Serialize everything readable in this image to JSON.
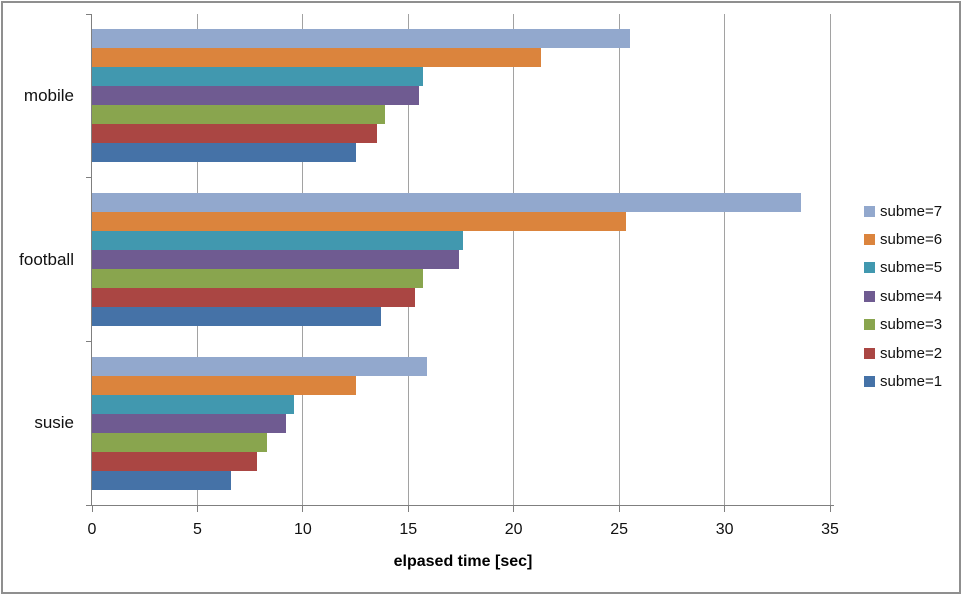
{
  "window": {
    "background_color": "#FFFFFF",
    "frame_border_color": "#8F8F8F",
    "gridline_color": "#A2A2A2",
    "axis_color": "#7F7F7F"
  },
  "chart_data": {
    "type": "bar",
    "orientation": "horizontal",
    "title": "",
    "xlabel": "elpased time [sec]",
    "ylabel": "",
    "categories": [
      "mobile",
      "football",
      "susie"
    ],
    "series": [
      {
        "name": "subme=7",
        "color": "#92A8CD",
        "values": [
          25.5,
          33.6,
          15.9
        ]
      },
      {
        "name": "subme=6",
        "color": "#DB843D",
        "values": [
          21.3,
          25.3,
          12.5
        ]
      },
      {
        "name": "subme=5",
        "color": "#4198AF",
        "values": [
          15.7,
          17.6,
          9.6
        ]
      },
      {
        "name": "subme=4",
        "color": "#6F5B91",
        "values": [
          15.5,
          17.4,
          9.2
        ]
      },
      {
        "name": "subme=3",
        "color": "#89A54E",
        "values": [
          13.9,
          15.7,
          8.3
        ]
      },
      {
        "name": "subme=2",
        "color": "#AA4643",
        "values": [
          13.5,
          15.3,
          7.8
        ]
      },
      {
        "name": "subme=1",
        "color": "#4572A7",
        "values": [
          12.5,
          13.7,
          6.6
        ]
      }
    ],
    "xlim": [
      0,
      35
    ],
    "x_ticks": [
      0,
      5,
      10,
      15,
      20,
      25,
      30,
      35
    ],
    "grid": true,
    "legend_position": "right",
    "bars_per_group_order_top_to_bottom": [
      "subme=7",
      "subme=6",
      "subme=5",
      "subme=4",
      "subme=3",
      "subme=2",
      "subme=1"
    ]
  }
}
